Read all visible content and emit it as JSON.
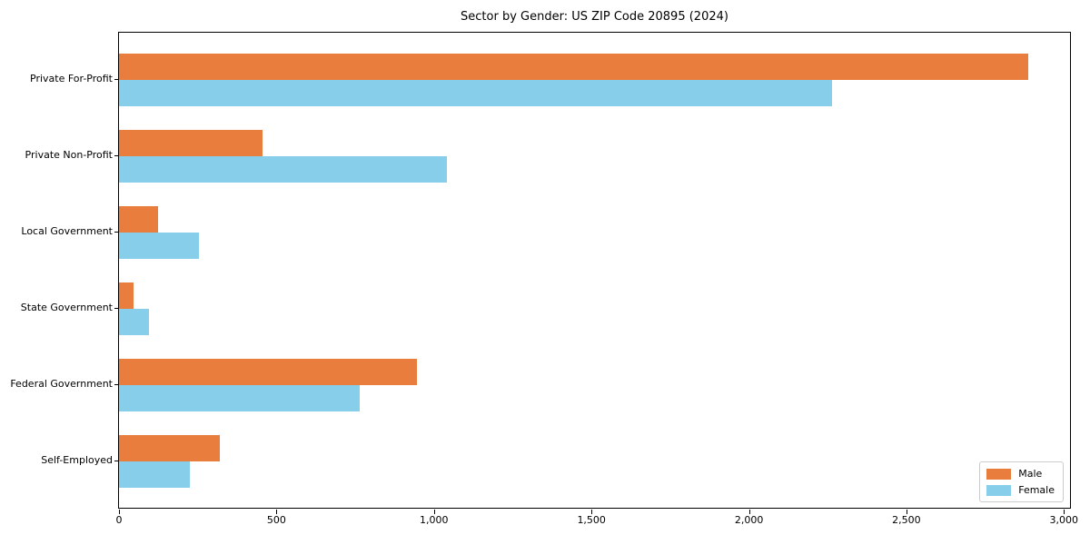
{
  "chart_data": {
    "type": "bar",
    "orientation": "horizontal",
    "title": "Sector by Gender: US ZIP Code 20895 (2024)",
    "categories": [
      "Private For-Profit",
      "Private Non-Profit",
      "Local Government",
      "State Government",
      "Federal Government",
      "Self-Employed"
    ],
    "series": [
      {
        "name": "Male",
        "color": "#e87d3d",
        "values": [
          2885,
          455,
          125,
          45,
          945,
          320
        ]
      },
      {
        "name": "Female",
        "color": "#87ceeb",
        "values": [
          2265,
          1040,
          255,
          95,
          765,
          225
        ]
      }
    ],
    "xlabel": "",
    "ylabel": "",
    "xlim": [
      0,
      3025
    ],
    "xticks": [
      0,
      500,
      1000,
      1500,
      2000,
      2500,
      3000
    ],
    "xtick_labels": [
      "0",
      "500",
      "1,000",
      "1,500",
      "2,000",
      "2,500",
      "3,000"
    ],
    "grid": false,
    "legend_position": "lower right",
    "plot_border_color": "#000000",
    "background_color": "#ffffff"
  }
}
